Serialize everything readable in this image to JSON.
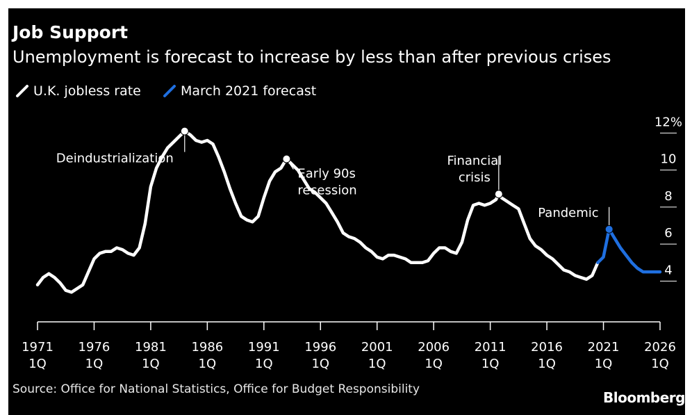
{
  "header": {
    "title": "Job Support",
    "subtitle": "Unemployment is forecast to increase by less than after previous crises"
  },
  "footer": {
    "source": "Source: Office for National Statistics, Office for Budget Responsibility",
    "logo": "Bloomberg"
  },
  "chart_data": {
    "type": "line",
    "title": "Job Support",
    "subtitle": "Unemployment is forecast to increase by less than after previous crises",
    "xlim": [
      1971.0,
      2026.0
    ],
    "ylim": [
      1.5,
      12.5
    ],
    "x_ticks": [
      {
        "value": 1971,
        "year": "1971",
        "q": "1Q"
      },
      {
        "value": 1976,
        "year": "1976",
        "q": "1Q"
      },
      {
        "value": 1981,
        "year": "1981",
        "q": "1Q"
      },
      {
        "value": 1986,
        "year": "1986",
        "q": "1Q"
      },
      {
        "value": 1991,
        "year": "1991",
        "q": "1Q"
      },
      {
        "value": 1996,
        "year": "1996",
        "q": "1Q"
      },
      {
        "value": 2001,
        "year": "2001",
        "q": "1Q"
      },
      {
        "value": 2006,
        "year": "2006",
        "q": "1Q"
      },
      {
        "value": 2011,
        "year": "2011",
        "q": "1Q"
      },
      {
        "value": 2016,
        "year": "2016",
        "q": "1Q"
      },
      {
        "value": 2021,
        "year": "2021",
        "q": "1Q"
      },
      {
        "value": 2026,
        "year": "2026",
        "q": "1Q"
      }
    ],
    "y_ticks": [
      {
        "value": 12,
        "label": "12%"
      },
      {
        "value": 10,
        "label": "10"
      },
      {
        "value": 8,
        "label": "8"
      },
      {
        "value": 6,
        "label": "6"
      },
      {
        "value": 4,
        "label": "4"
      }
    ],
    "grid": false,
    "legend_position": "top-left",
    "series": [
      {
        "name": "U.K. jobless rate",
        "color": "#ffffff",
        "points": [
          [
            1971.0,
            3.5
          ],
          [
            1971.5,
            3.9
          ],
          [
            1972.0,
            4.1
          ],
          [
            1972.5,
            3.9
          ],
          [
            1973.0,
            3.6
          ],
          [
            1973.5,
            3.2
          ],
          [
            1974.0,
            3.1
          ],
          [
            1974.5,
            3.3
          ],
          [
            1975.0,
            3.5
          ],
          [
            1975.5,
            4.2
          ],
          [
            1976.0,
            4.9
          ],
          [
            1976.5,
            5.2
          ],
          [
            1977.0,
            5.3
          ],
          [
            1977.5,
            5.3
          ],
          [
            1978.0,
            5.5
          ],
          [
            1978.5,
            5.4
          ],
          [
            1979.0,
            5.2
          ],
          [
            1979.5,
            5.1
          ],
          [
            1980.0,
            5.5
          ],
          [
            1980.5,
            6.8
          ],
          [
            1981.0,
            8.8
          ],
          [
            1981.5,
            9.8
          ],
          [
            1982.0,
            10.4
          ],
          [
            1982.5,
            10.9
          ],
          [
            1983.0,
            11.2
          ],
          [
            1983.5,
            11.5
          ],
          [
            1984.0,
            11.8
          ],
          [
            1984.5,
            11.6
          ],
          [
            1985.0,
            11.3
          ],
          [
            1985.5,
            11.2
          ],
          [
            1986.0,
            11.3
          ],
          [
            1986.5,
            11.1
          ],
          [
            1987.0,
            10.4
          ],
          [
            1987.5,
            9.6
          ],
          [
            1988.0,
            8.7
          ],
          [
            1988.5,
            7.9
          ],
          [
            1989.0,
            7.2
          ],
          [
            1989.5,
            7.0
          ],
          [
            1990.0,
            6.9
          ],
          [
            1990.5,
            7.2
          ],
          [
            1991.0,
            8.2
          ],
          [
            1991.5,
            9.1
          ],
          [
            1992.0,
            9.6
          ],
          [
            1992.5,
            9.8
          ],
          [
            1993.0,
            10.3
          ],
          [
            1993.5,
            10.0
          ],
          [
            1994.0,
            9.7
          ],
          [
            1994.5,
            9.2
          ],
          [
            1995.0,
            8.7
          ],
          [
            1995.5,
            8.5
          ],
          [
            1996.0,
            8.2
          ],
          [
            1996.5,
            7.9
          ],
          [
            1997.0,
            7.4
          ],
          [
            1997.5,
            6.9
          ],
          [
            1998.0,
            6.3
          ],
          [
            1998.5,
            6.1
          ],
          [
            1999.0,
            6.0
          ],
          [
            1999.5,
            5.8
          ],
          [
            2000.0,
            5.5
          ],
          [
            2000.5,
            5.3
          ],
          [
            2001.0,
            5.0
          ],
          [
            2001.5,
            4.9
          ],
          [
            2002.0,
            5.1
          ],
          [
            2002.5,
            5.1
          ],
          [
            2003.0,
            5.0
          ],
          [
            2003.5,
            4.9
          ],
          [
            2004.0,
            4.7
          ],
          [
            2004.5,
            4.7
          ],
          [
            2005.0,
            4.7
          ],
          [
            2005.5,
            4.8
          ],
          [
            2006.0,
            5.2
          ],
          [
            2006.5,
            5.5
          ],
          [
            2007.0,
            5.5
          ],
          [
            2007.5,
            5.3
          ],
          [
            2008.0,
            5.2
          ],
          [
            2008.5,
            5.8
          ],
          [
            2009.0,
            7.0
          ],
          [
            2009.5,
            7.8
          ],
          [
            2010.0,
            7.9
          ],
          [
            2010.5,
            7.8
          ],
          [
            2011.0,
            7.9
          ],
          [
            2011.5,
            8.1
          ],
          [
            2011.75,
            8.4
          ],
          [
            2012.0,
            8.2
          ],
          [
            2012.5,
            8.0
          ],
          [
            2013.0,
            7.8
          ],
          [
            2013.5,
            7.6
          ],
          [
            2014.0,
            6.8
          ],
          [
            2014.5,
            6.0
          ],
          [
            2015.0,
            5.6
          ],
          [
            2015.5,
            5.4
          ],
          [
            2016.0,
            5.1
          ],
          [
            2016.5,
            4.9
          ],
          [
            2017.0,
            4.6
          ],
          [
            2017.5,
            4.3
          ],
          [
            2018.0,
            4.2
          ],
          [
            2018.5,
            4.0
          ],
          [
            2019.0,
            3.9
          ],
          [
            2019.5,
            3.8
          ],
          [
            2020.0,
            4.0
          ],
          [
            2020.5,
            4.7
          ]
        ]
      },
      {
        "name": "March 2021 forecast",
        "color": "#1f6fe0",
        "points": [
          [
            2020.5,
            4.7
          ],
          [
            2021.0,
            5.0
          ],
          [
            2021.5,
            6.5
          ],
          [
            2022.0,
            6.0
          ],
          [
            2022.5,
            5.5
          ],
          [
            2023.0,
            5.1
          ],
          [
            2023.5,
            4.7
          ],
          [
            2024.0,
            4.4
          ],
          [
            2024.5,
            4.2
          ],
          [
            2025.0,
            4.2
          ],
          [
            2025.5,
            4.2
          ],
          [
            2026.0,
            4.2
          ]
        ]
      }
    ],
    "annotations": [
      {
        "id": "deindustrialization",
        "lines": [
          "Deindustrialization"
        ],
        "x": 1984.0,
        "y": 11.8
      },
      {
        "id": "early-90s",
        "lines": [
          "Early 90s",
          "recession"
        ],
        "x": 1993.0,
        "y": 10.3
      },
      {
        "id": "financial-crisis",
        "lines": [
          "Financial",
          "crisis"
        ],
        "x": 2011.75,
        "y": 8.4
      },
      {
        "id": "pandemic",
        "lines": [
          "Pandemic"
        ],
        "x": 2021.5,
        "y": 6.5
      }
    ]
  }
}
